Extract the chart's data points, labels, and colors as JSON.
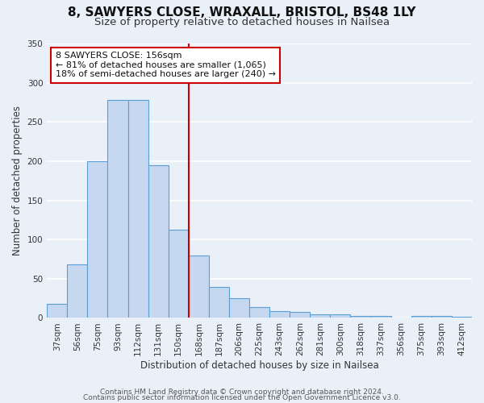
{
  "title": "8, SAWYERS CLOSE, WRAXALL, BRISTOL, BS48 1LY",
  "subtitle": "Size of property relative to detached houses in Nailsea",
  "xlabel": "Distribution of detached houses by size in Nailsea",
  "ylabel": "Number of detached properties",
  "categories": [
    "37sqm",
    "56sqm",
    "75sqm",
    "93sqm",
    "112sqm",
    "131sqm",
    "150sqm",
    "168sqm",
    "187sqm",
    "206sqm",
    "225sqm",
    "243sqm",
    "262sqm",
    "281sqm",
    "300sqm",
    "318sqm",
    "337sqm",
    "356sqm",
    "375sqm",
    "393sqm",
    "412sqm"
  ],
  "values": [
    18,
    68,
    200,
    278,
    278,
    195,
    113,
    80,
    40,
    25,
    14,
    9,
    8,
    5,
    5,
    3,
    3,
    0,
    3,
    3,
    2
  ],
  "bar_color": "#c5d8f0",
  "bar_edge_color": "#5a9fd4",
  "vline_color": "#cc0000",
  "vline_x": 6.5,
  "ylim": [
    0,
    350
  ],
  "yticks": [
    0,
    50,
    100,
    150,
    200,
    250,
    300,
    350
  ],
  "annotation_title": "8 SAWYERS CLOSE: 156sqm",
  "annotation_line1": "← 81% of detached houses are smaller (1,065)",
  "annotation_line2": "18% of semi-detached houses are larger (240) →",
  "annotation_box_color": "#ffffff",
  "annotation_box_edge": "#cc0000",
  "footer1": "Contains HM Land Registry data © Crown copyright and database right 2024.",
  "footer2": "Contains public sector information licensed under the Open Government Licence v3.0.",
  "background_color": "#eaf0f8",
  "grid_color": "#ffffff",
  "title_fontsize": 11,
  "subtitle_fontsize": 9.5,
  "axis_label_fontsize": 8.5,
  "tick_fontsize": 7.5,
  "footer_fontsize": 6.5
}
